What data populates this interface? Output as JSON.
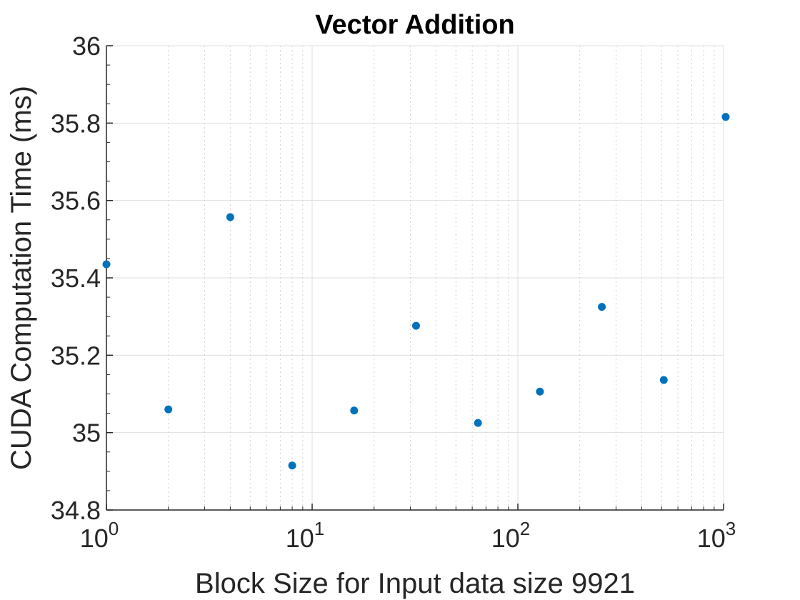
{
  "chart_data": {
    "type": "scatter",
    "title": "Vector Addition",
    "xlabel": "Block Size for Input data size 9921",
    "ylabel": "CUDA Computation Time (ms)",
    "x_scale": "log",
    "xlim": [
      1,
      1000
    ],
    "ylim": [
      34.8,
      36
    ],
    "grid": true,
    "x_ticks": [
      {
        "base": "10",
        "exp": "0",
        "value": 1
      },
      {
        "base": "10",
        "exp": "1",
        "value": 10
      },
      {
        "base": "10",
        "exp": "2",
        "value": 100
      },
      {
        "base": "10",
        "exp": "3",
        "value": 1000
      }
    ],
    "y_ticks": [
      "34.8",
      "35",
      "35.2",
      "35.4",
      "35.6",
      "35.8",
      "36"
    ],
    "marker_color": "#0072BD",
    "points": [
      {
        "x": 1,
        "y": 35.435
      },
      {
        "x": 2,
        "y": 35.06
      },
      {
        "x": 4,
        "y": 35.557
      },
      {
        "x": 8,
        "y": 34.915
      },
      {
        "x": 16,
        "y": 35.057
      },
      {
        "x": 32,
        "y": 35.276
      },
      {
        "x": 64,
        "y": 35.025
      },
      {
        "x": 128,
        "y": 35.106
      },
      {
        "x": 256,
        "y": 35.325
      },
      {
        "x": 512,
        "y": 35.136
      },
      {
        "x": 1024,
        "y": 35.816
      }
    ]
  }
}
